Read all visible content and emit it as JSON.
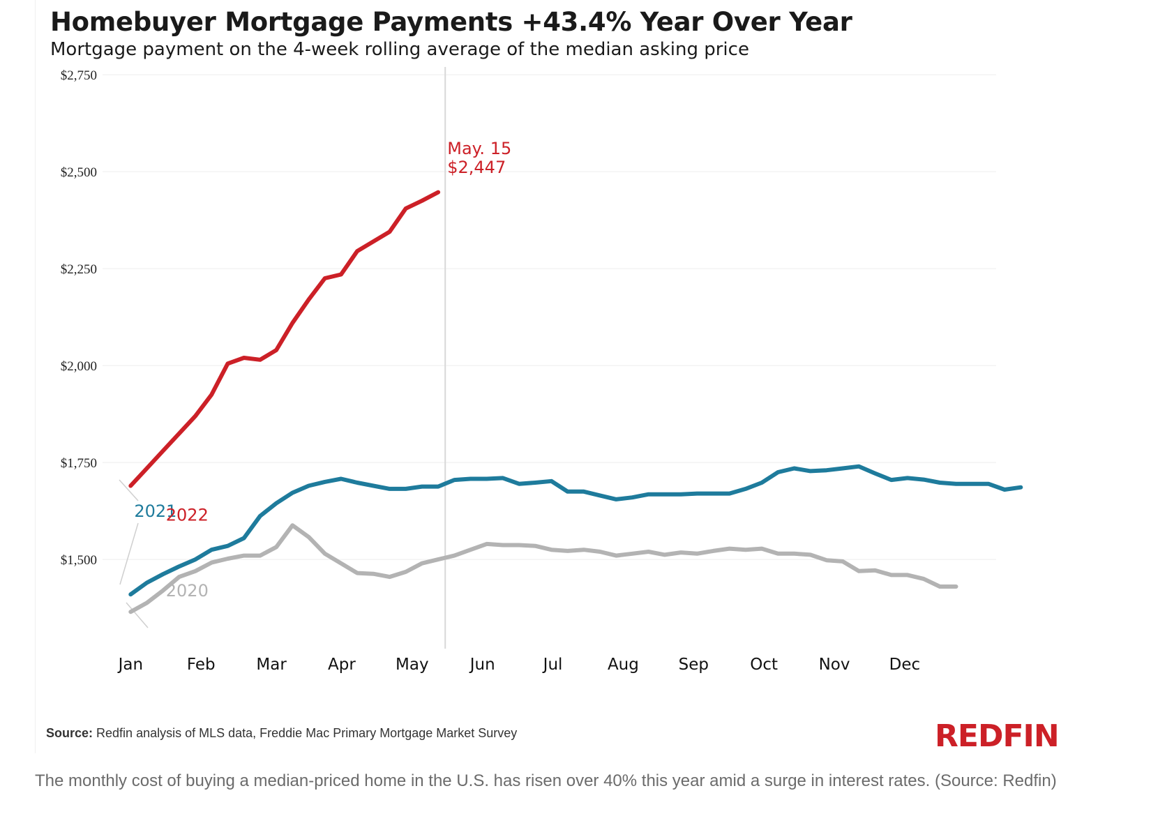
{
  "chart_data": {
    "type": "line",
    "title": "Homebuyer Mortgage Payments +43.4% Year Over Year",
    "subtitle": "Mortgage payment on the 4-week rolling average of the median asking price",
    "x_tick_labels": [
      "Jan",
      "Feb",
      "Mar",
      "Apr",
      "May",
      "Jun",
      "Jul",
      "Aug",
      "Sep",
      "Oct",
      "Nov",
      "Dec"
    ],
    "y_tick_labels": [
      "$1,500",
      "$1,750",
      "$2,000",
      "$2,250",
      "$2,500",
      "$2,750"
    ],
    "y_ticks": [
      1500,
      1750,
      2000,
      2250,
      2500,
      2750
    ],
    "ylim": [
      1270,
      2770
    ],
    "xlim": [
      0.6,
      13.3
    ],
    "grid": true,
    "week_x_start": 1.0,
    "week_x_step": 0.23,
    "series": [
      {
        "name": "2022",
        "color": "#cc2027",
        "values": [
          1690,
          1735,
          1780,
          1825,
          1870,
          1925,
          2005,
          2020,
          2015,
          2040,
          2110,
          2170,
          2225,
          2235,
          2295,
          2320,
          2345,
          2405,
          2425,
          2447
        ]
      },
      {
        "name": "2021",
        "color": "#1e7b9c",
        "values": [
          1410,
          1440,
          1462,
          1482,
          1500,
          1525,
          1535,
          1555,
          1612,
          1645,
          1672,
          1690,
          1700,
          1708,
          1698,
          1690,
          1682,
          1682,
          1688,
          1688,
          1705,
          1708,
          1708,
          1710,
          1695,
          1698,
          1702,
          1675,
          1675,
          1665,
          1655,
          1660,
          1668,
          1668,
          1668,
          1670,
          1670,
          1670,
          1682,
          1698,
          1725,
          1735,
          1728,
          1730,
          1735,
          1740,
          1722,
          1705,
          1710,
          1706,
          1698,
          1695,
          1695,
          1695,
          1680,
          1686
        ]
      },
      {
        "name": "2020",
        "color": "#b3b3b3",
        "values": [
          1365,
          1388,
          1420,
          1455,
          1470,
          1492,
          1502,
          1510,
          1510,
          1532,
          1588,
          1558,
          1515,
          1490,
          1465,
          1463,
          1455,
          1468,
          1490,
          1500,
          1510,
          1525,
          1540,
          1537,
          1537,
          1535,
          1525,
          1522,
          1525,
          1520,
          1510,
          1515,
          1520,
          1512,
          1518,
          1515,
          1522,
          1528,
          1525,
          1528,
          1515,
          1515,
          1512,
          1498,
          1495,
          1470,
          1472,
          1460,
          1460,
          1450,
          1430,
          1430
        ]
      }
    ],
    "annotations": [
      {
        "text": "May. 15",
        "x": 5.5,
        "y": 2545,
        "color": "#cc2027"
      },
      {
        "text": "$2,447",
        "x": 5.5,
        "y": 2497,
        "color": "#cc2027"
      },
      {
        "text": "2021",
        "x": 1.05,
        "y": 1610,
        "color": "#1e7b9c"
      },
      {
        "text": "2022",
        "x": 1.5,
        "y": 1600,
        "color": "#cc2027"
      },
      {
        "text": "2020",
        "x": 1.5,
        "y": 1405,
        "color": "#b3b3b3"
      }
    ],
    "reference_line": {
      "x": 5.47
    }
  },
  "source": {
    "label": "Source:",
    "text": " Redfin analysis of MLS data, Freddie Mac Primary Mortgage Market Survey"
  },
  "brand": "REDFIN",
  "brand_color": "#cc2027",
  "caption": "The monthly cost of buying a median-priced home in the U.S. has risen over 40% this year amid a surge in interest rates. (Source: Redfin)"
}
